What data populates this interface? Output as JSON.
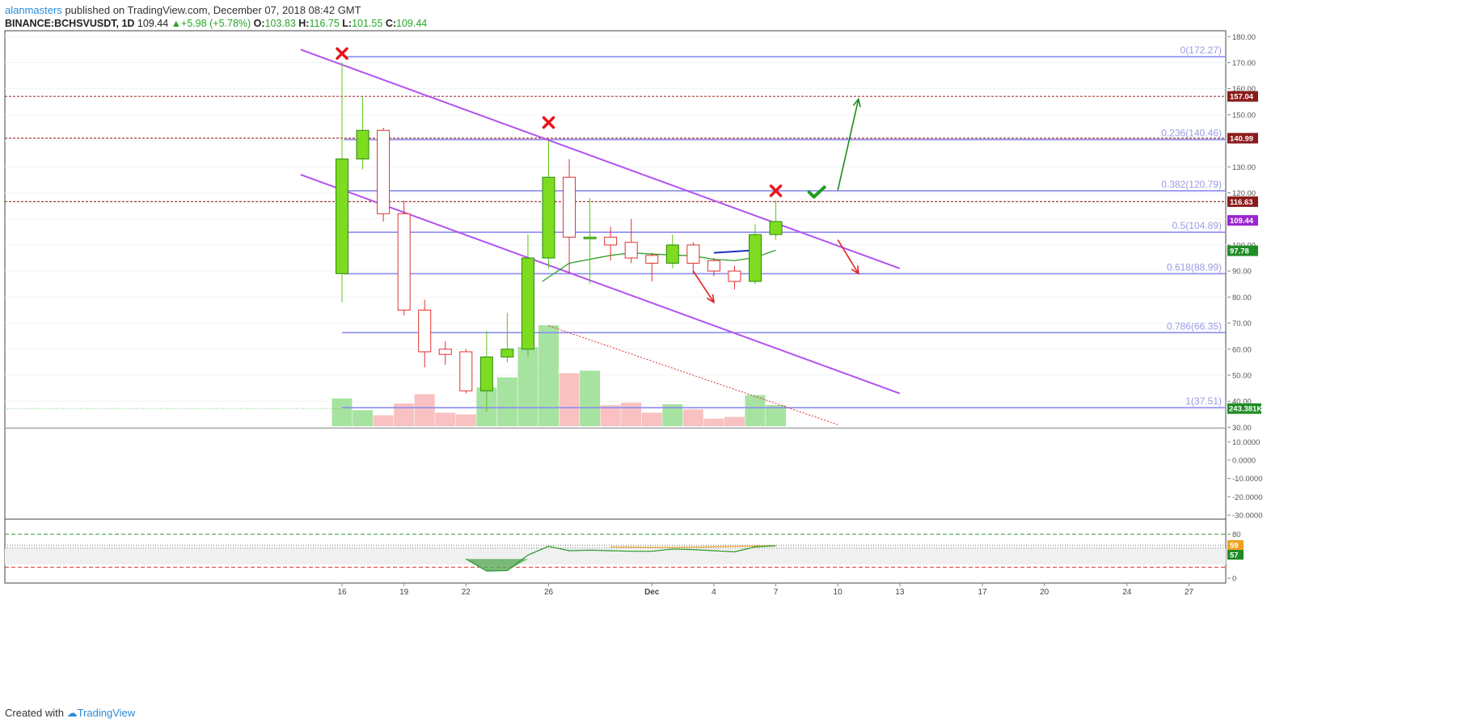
{
  "header": {
    "author": "alanmasters",
    "published_text": "published on TradingView.com, December 07, 2018 08:42 GMT",
    "symbol": "BINANCE:BCHSVUSDT, 1D",
    "last": "109.44",
    "change": "+5.98 (+5.78%)",
    "open_label": "O:",
    "open": "103.83",
    "high_label": "H:",
    "high": "116.75",
    "low_label": "L:",
    "low": "101.55",
    "close_label": "C:",
    "close": "109.44"
  },
  "footer": {
    "created_with": "Created with",
    "brand": "TradingView"
  },
  "colors": {
    "up": "#7ddc1f",
    "down": "#ff4a4a",
    "channel": "#b452f0",
    "fib": "#8c8cf0",
    "resistance": "#a23a3a",
    "arrow_up": "#1b8c1b",
    "arrow_down": "#e02020",
    "cross": "#e8141a",
    "check": "#1e9c1e",
    "ma": "#2aa02a",
    "vol_up": "#a6e3a0",
    "vol_down": "#f9c1c1"
  },
  "chart_data": {
    "type": "candlestick",
    "ylim": [
      30,
      182
    ],
    "price_ticks": [
      30,
      40,
      50,
      60,
      70,
      80,
      90,
      100,
      110,
      120,
      130,
      140,
      150,
      160,
      170,
      180
    ],
    "price_tick_labels": [
      "30.00",
      "40.00",
      "50.00",
      "60.00",
      "70.00",
      "80.00",
      "90.00",
      "100.00",
      "110.00",
      "120.00",
      "130.00",
      "140.00",
      "150.00",
      "160.00",
      "170.00",
      "180.00"
    ],
    "x_labels": [
      {
        "i": 0,
        "text": "16"
      },
      {
        "i": 3,
        "text": "19"
      },
      {
        "i": 6,
        "text": "22"
      },
      {
        "i": 10,
        "text": "26"
      },
      {
        "i": 15,
        "text": "Dec"
      },
      {
        "i": 18,
        "text": "4"
      },
      {
        "i": 21,
        "text": "7"
      },
      {
        "i": 24,
        "text": "10"
      },
      {
        "i": 27,
        "text": "13"
      },
      {
        "i": 31,
        "text": "17"
      },
      {
        "i": 34,
        "text": "20"
      },
      {
        "i": 38,
        "text": "24"
      },
      {
        "i": 41,
        "text": "27"
      }
    ],
    "candles": [
      {
        "o": 89,
        "h": 170,
        "l": 78,
        "c": 133
      },
      {
        "o": 133,
        "h": 157,
        "l": 129,
        "c": 144
      },
      {
        "o": 144,
        "h": 145,
        "l": 109,
        "c": 112
      },
      {
        "o": 112,
        "h": 117,
        "l": 73,
        "c": 75
      },
      {
        "o": 75,
        "h": 79,
        "l": 53,
        "c": 59
      },
      {
        "o": 60,
        "h": 63,
        "l": 54,
        "c": 58
      },
      {
        "o": 59,
        "h": 60,
        "l": 43,
        "c": 44
      },
      {
        "o": 44,
        "h": 67,
        "l": 36,
        "c": 57
      },
      {
        "o": 57,
        "h": 74,
        "l": 55,
        "c": 60
      },
      {
        "o": 60,
        "h": 104,
        "l": 57,
        "c": 95
      },
      {
        "o": 95,
        "h": 140,
        "l": 91,
        "c": 126
      },
      {
        "o": 126,
        "h": 133,
        "l": 89,
        "c": 103
      },
      {
        "o": 103,
        "h": 118,
        "l": 85,
        "c": 103
      },
      {
        "o": 103,
        "h": 107,
        "l": 94,
        "c": 100
      },
      {
        "o": 101,
        "h": 110,
        "l": 93,
        "c": 95
      },
      {
        "o": 96,
        "h": 97,
        "l": 86,
        "c": 93
      },
      {
        "o": 93,
        "h": 104,
        "l": 91,
        "c": 100
      },
      {
        "o": 100,
        "h": 101,
        "l": 89,
        "c": 93
      },
      {
        "o": 94,
        "h": 95,
        "l": 88,
        "c": 90
      },
      {
        "o": 90,
        "h": 92,
        "l": 83,
        "c": 86
      },
      {
        "o": 86,
        "h": 108,
        "l": 85,
        "c": 104
      },
      {
        "o": 104,
        "h": 117,
        "l": 102,
        "c": 109
      }
    ],
    "volume": [
      {
        "v": 33,
        "up": true
      },
      {
        "v": 19,
        "up": true
      },
      {
        "v": 13,
        "up": false
      },
      {
        "v": 27,
        "up": false
      },
      {
        "v": 38,
        "up": false
      },
      {
        "v": 16,
        "up": false
      },
      {
        "v": 14,
        "up": false
      },
      {
        "v": 46,
        "up": true
      },
      {
        "v": 58,
        "up": true
      },
      {
        "v": 94,
        "up": true
      },
      {
        "v": 120,
        "up": true
      },
      {
        "v": 63,
        "up": false
      },
      {
        "v": 66,
        "up": true
      },
      {
        "v": 25,
        "up": false
      },
      {
        "v": 28,
        "up": false
      },
      {
        "v": 16,
        "up": false
      },
      {
        "v": 26,
        "up": true
      },
      {
        "v": 20,
        "up": false
      },
      {
        "v": 9,
        "up": false
      },
      {
        "v": 11,
        "up": false
      },
      {
        "v": 37,
        "up": true
      },
      {
        "v": 25,
        "up": true
      }
    ],
    "ma": [
      {
        "i": 9.7,
        "p": 86
      },
      {
        "i": 11,
        "p": 93
      },
      {
        "i": 13,
        "p": 96
      },
      {
        "i": 14,
        "p": 97
      },
      {
        "i": 15,
        "p": 96.5
      },
      {
        "i": 17,
        "p": 95.8
      },
      {
        "i": 18,
        "p": 94.5
      },
      {
        "i": 19,
        "p": 94
      },
      {
        "i": 20,
        "p": 95.2
      },
      {
        "i": 21,
        "p": 98
      }
    ],
    "fib_levels": [
      {
        "p": 172.27,
        "label": "0(172.27)",
        "i0": 0.1
      },
      {
        "p": 140.46,
        "label": "0.236(140.46)",
        "i0": 0.1
      },
      {
        "p": 120.79,
        "label": "0.382(120.79)",
        "i0": 0.1
      },
      {
        "p": 104.89,
        "label": "0.5(104.89)",
        "i0": 0.1
      },
      {
        "p": 88.99,
        "label": "0.618(88.99)",
        "i0": 0.1
      },
      {
        "p": 66.35,
        "label": "0.786(66.35)",
        "i0": 0
      },
      {
        "p": 37.51,
        "label": "1(37.51)",
        "i0": 0
      }
    ],
    "resistance_levels": [
      157.04,
      140.99,
      116.63
    ],
    "price_badges": [
      {
        "p": 157.04,
        "label": "157.04",
        "color": "#8b1c1c"
      },
      {
        "p": 140.99,
        "label": "140.99",
        "color": "#8b1c1c"
      },
      {
        "p": 116.63,
        "label": "116.63",
        "color": "#8b1c1c"
      },
      {
        "p": 109.44,
        "label": "109.44",
        "color": "#9c27d0"
      },
      {
        "p": 97.78,
        "label": "97.78",
        "color": "#1f8c25"
      }
    ],
    "volume_badge": {
      "p": 37.5,
      "label": "243.381K",
      "color": "#1f8c25"
    },
    "channel": [
      {
        "i1": -2,
        "p1": 175,
        "i2": 27,
        "p2": 91
      },
      {
        "i1": -2,
        "p1": 127,
        "i2": 27,
        "p2": 43
      }
    ],
    "dotted_trend": {
      "i1": 10,
      "p1": 69,
      "i2": 24,
      "p2": 31
    },
    "blue_segment": {
      "i1": 18,
      "p1": 97,
      "i2": 20,
      "p2": 98
    },
    "crosses": [
      {
        "i": 0,
        "p": 173.5
      },
      {
        "i": 10,
        "p": 147
      },
      {
        "i": 21,
        "p": 120.8
      }
    ],
    "check": {
      "i": 23,
      "p": 120
    },
    "arrows": [
      {
        "i1": 24,
        "p1": 121,
        "i2": 25,
        "p2": 156,
        "kind": "up"
      },
      {
        "i1": 24,
        "p1": 102,
        "i2": 25,
        "p2": 89,
        "kind": "down"
      },
      {
        "i1": 17,
        "p1": 90,
        "i2": 18,
        "p2": 78,
        "kind": "down"
      }
    ],
    "osc_ticks": [
      10,
      0,
      -10,
      -20,
      -30
    ],
    "osc_tick_labels": [
      "10.0000",
      "0.0000",
      "-10.0000",
      "-20.0000",
      "-30.0000"
    ],
    "rsi_ticks": [
      80,
      40,
      0
    ],
    "rsi_tick_labels": [
      "80",
      "40",
      "0"
    ],
    "rsi_badges": [
      {
        "v": 59,
        "label": "59",
        "color": "#f0a020"
      },
      {
        "v": 57,
        "label": "57",
        "color": "#1f8c25"
      }
    ],
    "rsi_line": [
      {
        "i": 6,
        "v": 35
      },
      {
        "i": 7,
        "v": 13
      },
      {
        "i": 8,
        "v": 14
      },
      {
        "i": 9,
        "v": 42
      },
      {
        "i": 10,
        "v": 58
      },
      {
        "i": 11,
        "v": 50
      },
      {
        "i": 12,
        "v": 51
      },
      {
        "i": 13,
        "v": 50
      },
      {
        "i": 14,
        "v": 49
      },
      {
        "i": 15,
        "v": 49
      },
      {
        "i": 16,
        "v": 53
      },
      {
        "i": 17,
        "v": 52
      },
      {
        "i": 18,
        "v": 50
      },
      {
        "i": 19,
        "v": 48
      },
      {
        "i": 20,
        "v": 57
      },
      {
        "i": 21,
        "v": 59
      }
    ],
    "rsi_signal": [
      {
        "i": 13,
        "v": 57
      },
      {
        "i": 16,
        "v": 56
      },
      {
        "i": 19,
        "v": 58
      },
      {
        "i": 21,
        "v": 59
      }
    ],
    "rsi_shade": {
      "i1": 6,
      "i2": 9,
      "threshold": 35
    }
  }
}
